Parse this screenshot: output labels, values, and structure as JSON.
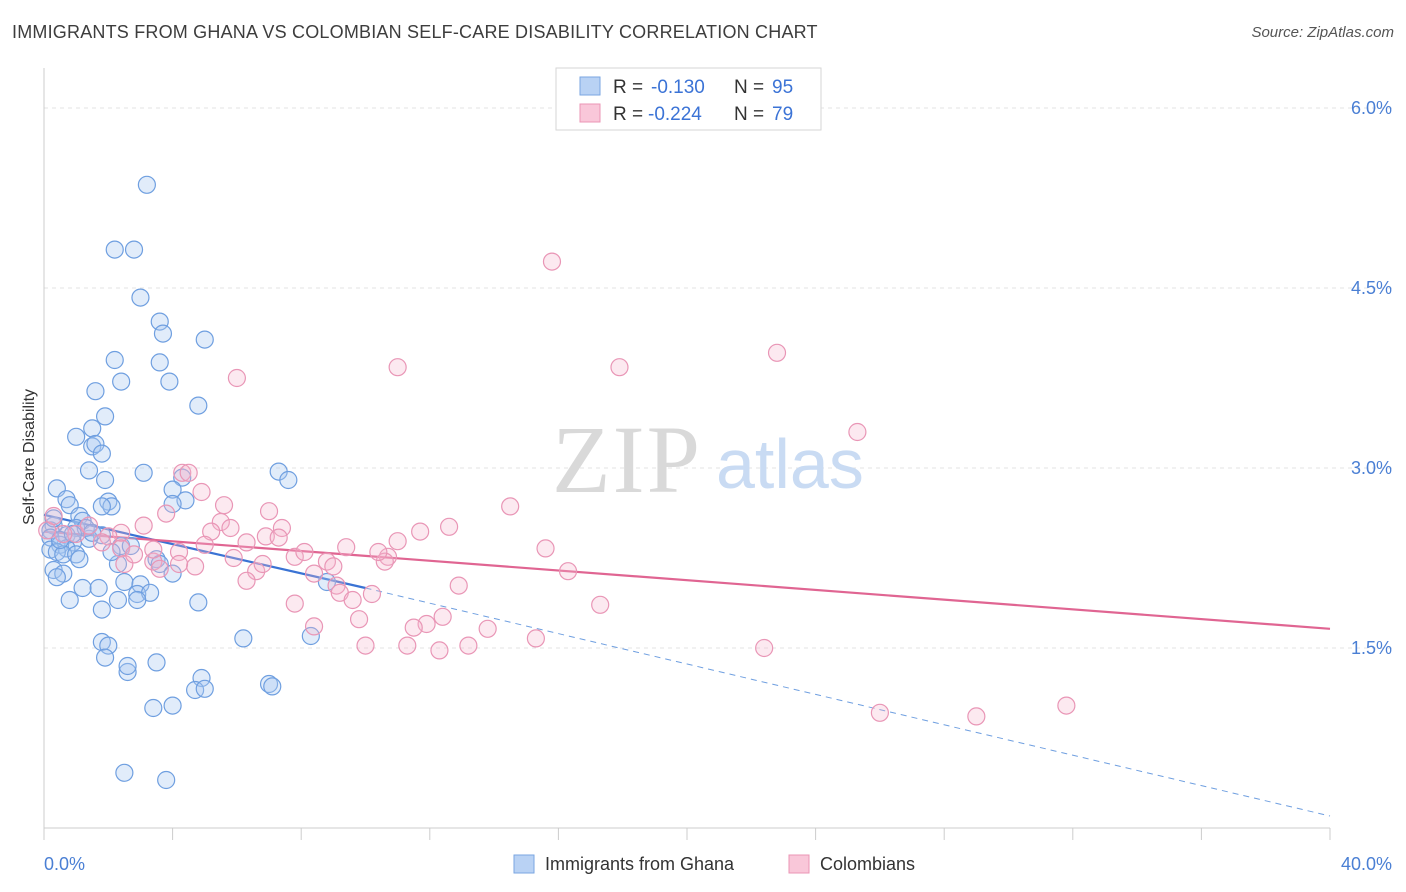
{
  "header": {
    "title": "IMMIGRANTS FROM GHANA VS COLOMBIAN SELF-CARE DISABILITY CORRELATION CHART",
    "source": "Source: ZipAtlas.com"
  },
  "watermark": {
    "zip": "ZIP",
    "atlas": "atlas"
  },
  "colors": {
    "blue": "#4a86d9",
    "blue_fill": "#a9c8f2",
    "pink": "#e06592",
    "pink_fill": "#f6b5cc",
    "tick": "#4a7fd4"
  },
  "chart_data": {
    "type": "scatter",
    "title": "IMMIGRANTS FROM GHANA VS COLOMBIAN SELF-CARE DISABILITY CORRELATION CHART",
    "xlabel": "",
    "ylabel": "Self-Care Disability",
    "xlim": [
      0,
      40
    ],
    "ylim": [
      0,
      6.25
    ],
    "x_ticks": [
      "0.0%",
      "40.0%"
    ],
    "y_ticks": [
      {
        "value": 1.5,
        "label": "1.5%"
      },
      {
        "value": 3.0,
        "label": "3.0%"
      },
      {
        "value": 4.5,
        "label": "4.5%"
      },
      {
        "value": 6.0,
        "label": "6.0%"
      }
    ],
    "grid": true,
    "legend_position": "top-center",
    "legend": [
      {
        "r_label": "R =",
        "r_value": "-0.130",
        "n_label": "N =",
        "n_value": "95"
      },
      {
        "r_label": "R =",
        "r_value": "-0.224",
        "n_label": "N =",
        "n_value": "79"
      }
    ],
    "series": [
      {
        "name": "Immigrants from Ghana",
        "color": "#4a86d9",
        "trend": {
          "x0": 0.0,
          "y0": 2.61,
          "x1": 10.0,
          "y1": 2.0,
          "dash_to_x": 40.0,
          "dash_to_y": 0.1
        },
        "points": [
          [
            3.2,
            5.36
          ],
          [
            2.2,
            4.82
          ],
          [
            2.8,
            4.82
          ],
          [
            3.0,
            4.42
          ],
          [
            3.6,
            4.22
          ],
          [
            3.7,
            4.12
          ],
          [
            5.0,
            4.07
          ],
          [
            2.2,
            3.9
          ],
          [
            3.6,
            3.88
          ],
          [
            2.4,
            3.72
          ],
          [
            3.9,
            3.72
          ],
          [
            1.6,
            3.64
          ],
          [
            4.8,
            3.52
          ],
          [
            1.9,
            3.43
          ],
          [
            1.5,
            3.33
          ],
          [
            1.0,
            3.26
          ],
          [
            1.5,
            3.18
          ],
          [
            1.6,
            3.2
          ],
          [
            1.8,
            3.12
          ],
          [
            1.4,
            2.98
          ],
          [
            3.1,
            2.96
          ],
          [
            7.3,
            2.97
          ],
          [
            7.6,
            2.9
          ],
          [
            4.3,
            2.92
          ],
          [
            1.9,
            2.9
          ],
          [
            0.4,
            2.83
          ],
          [
            4.0,
            2.82
          ],
          [
            0.7,
            2.74
          ],
          [
            0.8,
            2.69
          ],
          [
            2.0,
            2.72
          ],
          [
            2.1,
            2.68
          ],
          [
            1.8,
            2.68
          ],
          [
            4.4,
            2.73
          ],
          [
            4.0,
            2.7
          ],
          [
            1.1,
            2.6
          ],
          [
            1.2,
            2.56
          ],
          [
            0.3,
            2.52
          ],
          [
            0.2,
            2.48
          ],
          [
            1.0,
            2.5
          ],
          [
            0.7,
            2.44
          ],
          [
            1.8,
            2.44
          ],
          [
            0.2,
            2.42
          ],
          [
            1.4,
            2.41
          ],
          [
            0.9,
            2.38
          ],
          [
            0.5,
            2.36
          ],
          [
            0.7,
            2.33
          ],
          [
            2.4,
            2.35
          ],
          [
            2.7,
            2.35
          ],
          [
            0.2,
            2.32
          ],
          [
            0.4,
            2.3
          ],
          [
            0.6,
            2.28
          ],
          [
            1.0,
            2.28
          ],
          [
            1.1,
            2.24
          ],
          [
            3.5,
            2.24
          ],
          [
            3.6,
            2.2
          ],
          [
            2.3,
            2.2
          ],
          [
            0.3,
            2.15
          ],
          [
            0.6,
            2.12
          ],
          [
            0.4,
            2.09
          ],
          [
            4.0,
            2.12
          ],
          [
            2.5,
            2.05
          ],
          [
            8.8,
            2.05
          ],
          [
            3.0,
            2.03
          ],
          [
            1.2,
            2.0
          ],
          [
            1.7,
            2.0
          ],
          [
            2.9,
            1.95
          ],
          [
            3.3,
            1.96
          ],
          [
            0.8,
            1.9
          ],
          [
            2.3,
            1.9
          ],
          [
            2.9,
            1.9
          ],
          [
            4.8,
            1.88
          ],
          [
            1.8,
            1.82
          ],
          [
            1.8,
            1.55
          ],
          [
            2.0,
            1.52
          ],
          [
            6.2,
            1.58
          ],
          [
            8.3,
            1.6
          ],
          [
            1.9,
            1.42
          ],
          [
            2.6,
            1.3
          ],
          [
            2.6,
            1.35
          ],
          [
            3.5,
            1.38
          ],
          [
            4.9,
            1.25
          ],
          [
            4.7,
            1.15
          ],
          [
            5.0,
            1.16
          ],
          [
            7.0,
            1.2
          ],
          [
            7.1,
            1.18
          ],
          [
            3.4,
            1.0
          ],
          [
            4.0,
            1.02
          ],
          [
            2.5,
            0.46
          ],
          [
            3.8,
            0.4
          ],
          [
            1.3,
            2.5
          ],
          [
            0.5,
            2.4
          ],
          [
            0.9,
            2.45
          ],
          [
            1.5,
            2.46
          ],
          [
            2.1,
            2.3
          ],
          [
            0.3,
            2.58
          ]
        ]
      },
      {
        "name": "Colombians",
        "color": "#e06592",
        "trend": {
          "x0": 0.0,
          "y0": 2.47,
          "x1": 40.0,
          "y1": 1.66
        },
        "points": [
          [
            15.8,
            4.72
          ],
          [
            22.8,
            3.96
          ],
          [
            11.0,
            3.84
          ],
          [
            17.9,
            3.84
          ],
          [
            6.0,
            3.75
          ],
          [
            25.3,
            3.3
          ],
          [
            4.3,
            2.96
          ],
          [
            4.5,
            2.96
          ],
          [
            4.9,
            2.8
          ],
          [
            5.6,
            2.69
          ],
          [
            14.5,
            2.68
          ],
          [
            7.0,
            2.64
          ],
          [
            3.8,
            2.62
          ],
          [
            5.5,
            2.55
          ],
          [
            3.1,
            2.52
          ],
          [
            5.8,
            2.5
          ],
          [
            7.4,
            2.5
          ],
          [
            12.6,
            2.51
          ],
          [
            11.7,
            2.47
          ],
          [
            5.2,
            2.47
          ],
          [
            2.4,
            2.46
          ],
          [
            1.0,
            2.45
          ],
          [
            0.1,
            2.48
          ],
          [
            6.9,
            2.43
          ],
          [
            2.0,
            2.43
          ],
          [
            7.3,
            2.42
          ],
          [
            6.3,
            2.38
          ],
          [
            11.0,
            2.39
          ],
          [
            9.4,
            2.34
          ],
          [
            15.6,
            2.33
          ],
          [
            2.4,
            2.33
          ],
          [
            4.2,
            2.3
          ],
          [
            10.7,
            2.26
          ],
          [
            10.6,
            2.22
          ],
          [
            7.8,
            2.26
          ],
          [
            8.8,
            2.22
          ],
          [
            3.4,
            2.22
          ],
          [
            4.7,
            2.18
          ],
          [
            2.5,
            2.2
          ],
          [
            3.6,
            2.16
          ],
          [
            6.6,
            2.14
          ],
          [
            8.4,
            2.12
          ],
          [
            16.3,
            2.14
          ],
          [
            6.3,
            2.06
          ],
          [
            9.1,
            2.02
          ],
          [
            12.9,
            2.02
          ],
          [
            9.2,
            1.96
          ],
          [
            10.2,
            1.95
          ],
          [
            9.6,
            1.9
          ],
          [
            7.8,
            1.87
          ],
          [
            17.3,
            1.86
          ],
          [
            12.4,
            1.76
          ],
          [
            9.8,
            1.74
          ],
          [
            11.9,
            1.7
          ],
          [
            11.5,
            1.67
          ],
          [
            8.4,
            1.68
          ],
          [
            13.8,
            1.66
          ],
          [
            15.3,
            1.58
          ],
          [
            10.0,
            1.52
          ],
          [
            11.3,
            1.52
          ],
          [
            12.3,
            1.48
          ],
          [
            13.2,
            1.52
          ],
          [
            22.4,
            1.5
          ],
          [
            26.0,
            0.96
          ],
          [
            29.0,
            0.93
          ],
          [
            31.8,
            1.02
          ],
          [
            0.3,
            2.6
          ],
          [
            0.6,
            2.45
          ],
          [
            1.4,
            2.52
          ],
          [
            1.8,
            2.38
          ],
          [
            2.8,
            2.28
          ],
          [
            3.4,
            2.32
          ],
          [
            4.2,
            2.2
          ],
          [
            5.0,
            2.36
          ],
          [
            6.8,
            2.2
          ],
          [
            8.1,
            2.3
          ],
          [
            9.0,
            2.18
          ],
          [
            10.4,
            2.3
          ],
          [
            5.9,
            2.25
          ]
        ]
      }
    ],
    "bottom_legend": [
      "Immigrants from Ghana",
      "Colombians"
    ]
  }
}
